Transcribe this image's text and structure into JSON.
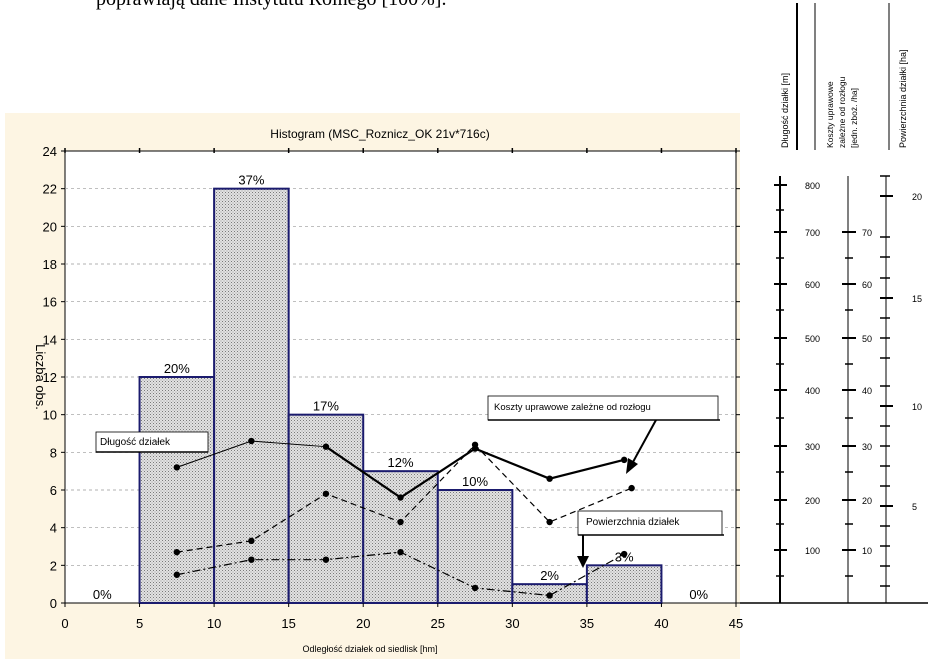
{
  "top_text": "poprawiają dane Instytutu Rolnego [100%].",
  "chart_data": {
    "type": "bar",
    "title": "Histogram (MSC_Roznicz_OK 21v*716c)",
    "xlabel": "Odległość działek od siedlisk [hm]",
    "ylabel": "Liczba obs.",
    "xlim": [
      0,
      45
    ],
    "ylim": [
      0,
      24
    ],
    "xticks": [
      0,
      5,
      10,
      15,
      20,
      25,
      30,
      35,
      40,
      45
    ],
    "yticks": [
      0,
      2,
      4,
      6,
      8,
      10,
      12,
      14,
      16,
      18,
      20,
      22,
      24
    ],
    "grid": "horizontal dashed",
    "bins": [
      {
        "from": 0,
        "to": 5,
        "count": 0,
        "pct": "0%"
      },
      {
        "from": 5,
        "to": 10,
        "count": 12,
        "pct": "20%"
      },
      {
        "from": 10,
        "to": 15,
        "count": 22,
        "pct": "37%"
      },
      {
        "from": 15,
        "to": 20,
        "count": 10,
        "pct": "17%"
      },
      {
        "from": 20,
        "to": 25,
        "count": 7,
        "pct": "12%"
      },
      {
        "from": 25,
        "to": 30,
        "count": 6,
        "pct": "10%"
      },
      {
        "from": 30,
        "to": 35,
        "count": 1,
        "pct": "2%"
      },
      {
        "from": 35,
        "to": 40,
        "count": 2,
        "pct": "3%"
      },
      {
        "from": 40,
        "to": 45,
        "count": 0,
        "pct": "0%"
      }
    ],
    "series": [
      {
        "label_box": "Długość działek",
        "style": "solid-thin",
        "points": [
          [
            7.5,
            7.2
          ],
          [
            12.5,
            8.6
          ],
          [
            17.5,
            8.3
          ],
          [
            22.5,
            5.6
          ],
          [
            27.5,
            8.2
          ],
          [
            32.5,
            6.6
          ],
          [
            37.5,
            7.6
          ]
        ]
      },
      {
        "label_box": "Koszty uprawowe zależne od rozłogu",
        "style": "dashed",
        "points": [
          [
            7.5,
            2.7
          ],
          [
            12.5,
            3.3
          ],
          [
            17.5,
            5.8
          ],
          [
            22.5,
            4.3
          ],
          [
            27.5,
            8.4
          ],
          [
            32.5,
            4.3
          ],
          [
            38,
            6.1
          ]
        ]
      },
      {
        "label_box": "Powierzchnia działek",
        "style": "dashdot",
        "points": [
          [
            7.5,
            1.5
          ],
          [
            12.5,
            2.3
          ],
          [
            17.5,
            2.3
          ],
          [
            22.5,
            2.7
          ],
          [
            27.5,
            0.8
          ],
          [
            32.5,
            0.4
          ],
          [
            37.5,
            2.6
          ]
        ]
      }
    ],
    "side_axes": [
      {
        "header": "Długość działki [m]",
        "ticks": [
          "800",
          "700",
          "600",
          "500",
          "400",
          "300",
          "200",
          "100"
        ]
      },
      {
        "header_lines": [
          "Koszty uprawowe",
          "zależne od rozłogu",
          "[jedn. zboż. /ha]"
        ],
        "ticks": [
          "70",
          "60",
          "50",
          "40",
          "30",
          "20",
          "10"
        ]
      },
      {
        "header": "Powierzchnia działki [ha]",
        "ticks": [
          "20",
          "15",
          "10",
          "5"
        ]
      }
    ]
  }
}
